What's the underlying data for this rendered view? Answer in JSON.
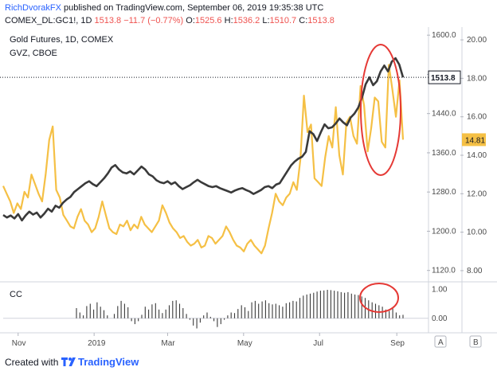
{
  "header": {
    "author": "RichDvorakFX",
    "published": "published on TradingView.com, September 06, 2019 19:35:38 UTC",
    "symbol": "COMEX_DL:GC1!, 1D",
    "last": "1513.8",
    "change": "−11.7 (−0.77%)",
    "o_label": "O:",
    "o_value": "1525.6",
    "h_label": "H:",
    "h_value": "1536.2",
    "l_label": "L:",
    "l_value": "1510.7",
    "c_label": "C:",
    "c_value": "1513.8"
  },
  "legend": {
    "gold": "Gold Futures, 1D, COMEX",
    "gvz": "GVZ, CBOE",
    "cc": "CC"
  },
  "colors": {
    "gold_line": "#3a3a3a",
    "gvz_line": "#f5c045",
    "annotation": "#e53935",
    "grid": "#e6e9ef",
    "axis_text": "#4a4a4a"
  },
  "axes": {
    "gold_ticks": [
      "1600.0",
      "1520.0",
      "1440.0",
      "1360.0",
      "1280.0",
      "1200.0",
      "1120.0"
    ],
    "gvz_ticks": [
      "20.00",
      "18.00",
      "16.00",
      "14.00",
      "12.00",
      "10.00",
      "8.00"
    ],
    "cc_ticks": [
      "1.00",
      "0.00"
    ],
    "x_ticks": [
      "Nov",
      "2019",
      "Mar",
      "May",
      "Jul",
      "Sep"
    ],
    "gold_last_badge": "1513.8",
    "gvz_last_badge": "14.81",
    "badge_a": "A",
    "badge_b": "B"
  },
  "footer": {
    "created_with": "Created with",
    "brand": "TradingView"
  },
  "chart_data": {
    "type": "line",
    "x_range": [
      "2018-10-20",
      "2019-09-06"
    ],
    "series": [
      {
        "name": "Gold Futures, 1D, COMEX",
        "axis": "left",
        "ylim": [
          1100,
          1610
        ],
        "values": [
          1233,
          1228,
          1232,
          1226,
          1235,
          1222,
          1232,
          1240,
          1234,
          1238,
          1228,
          1236,
          1246,
          1240,
          1252,
          1248,
          1258,
          1265,
          1270,
          1280,
          1286,
          1292,
          1298,
          1302,
          1296,
          1292,
          1300,
          1308,
          1318,
          1330,
          1335,
          1326,
          1320,
          1318,
          1322,
          1316,
          1324,
          1332,
          1326,
          1316,
          1312,
          1304,
          1300,
          1298,
          1302,
          1296,
          1300,
          1292,
          1286,
          1290,
          1294,
          1300,
          1305,
          1300,
          1296,
          1292,
          1290,
          1292,
          1288,
          1285,
          1282,
          1279,
          1283,
          1286,
          1288,
          1284,
          1281,
          1276,
          1280,
          1284,
          1290,
          1292,
          1288,
          1295,
          1298,
          1310,
          1322,
          1334,
          1342,
          1348,
          1352,
          1362,
          1404,
          1398,
          1384,
          1402,
          1418,
          1410,
          1412,
          1420,
          1430,
          1422,
          1416,
          1432,
          1440,
          1452,
          1472,
          1500,
          1514,
          1498,
          1506,
          1526,
          1538,
          1526,
          1546,
          1553,
          1540,
          1514
        ]
      },
      {
        "name": "GVZ, CBOE",
        "axis": "right",
        "ylim": [
          7.5,
          20.5
        ],
        "values": [
          12.4,
          12.0,
          11.6,
          11.0,
          11.5,
          11.2,
          12.1,
          11.8,
          13.0,
          12.5,
          12.0,
          11.6,
          13.0,
          14.8,
          15.5,
          12.2,
          11.8,
          10.9,
          10.6,
          10.3,
          10.2,
          10.8,
          11.2,
          10.6,
          10.4,
          10.0,
          10.2,
          10.8,
          11.6,
          10.9,
          10.2,
          10.0,
          9.9,
          10.4,
          10.3,
          10.6,
          10.1,
          10.4,
          10.2,
          10.8,
          10.4,
          10.2,
          10.0,
          10.3,
          10.6,
          11.4,
          11.0,
          10.5,
          10.2,
          10.0,
          9.7,
          9.8,
          9.5,
          9.3,
          9.4,
          9.6,
          9.2,
          9.3,
          9.8,
          9.7,
          9.4,
          9.6,
          9.8,
          10.3,
          10.0,
          9.6,
          9.3,
          9.2,
          9.0,
          9.4,
          9.6,
          9.3,
          9.1,
          8.9,
          9.3,
          10.2,
          11.0,
          12.0,
          11.6,
          11.4,
          11.8,
          12.0,
          12.6,
          12.2,
          13.8,
          17.1,
          15.2,
          15.6,
          12.8,
          12.6,
          12.4,
          13.9,
          15.0,
          14.4,
          16.5,
          14.0,
          13.0,
          15.7,
          16.0,
          15.0,
          14.6,
          17.6,
          16.6,
          14.2,
          15.4,
          17.0,
          16.8,
          14.7,
          14.4,
          18.7,
          17.4,
          16.0,
          17.9,
          14.81
        ]
      },
      {
        "name": "CC",
        "axis": "cc",
        "ylim": [
          -0.5,
          1.2
        ],
        "values": [
          0.35,
          0.2,
          0.1,
          0.42,
          0.5,
          0.3,
          0.55,
          0.4,
          0.28,
          0.1,
          0.0,
          0.15,
          0.42,
          0.6,
          0.5,
          0.38,
          -0.1,
          -0.2,
          -0.1,
          0.12,
          0.4,
          0.3,
          0.48,
          0.52,
          0.3,
          0.18,
          0.3,
          0.45,
          0.6,
          0.62,
          0.5,
          0.35,
          0.15,
          -0.05,
          -0.25,
          -0.35,
          -0.15,
          0.1,
          0.2,
          0.05,
          -0.1,
          -0.3,
          -0.2,
          -0.05,
          0.1,
          0.2,
          0.18,
          0.32,
          0.45,
          0.38,
          0.25,
          0.55,
          0.6,
          0.5,
          0.58,
          0.62,
          0.52,
          0.48,
          0.5,
          0.45,
          0.4,
          0.52,
          0.55,
          0.6,
          0.58,
          0.7,
          0.78,
          0.82,
          0.85,
          0.88,
          0.92,
          0.95,
          0.96,
          0.98,
          0.97,
          0.95,
          0.93,
          0.9,
          0.88,
          0.9,
          0.85,
          0.82,
          0.8,
          0.75,
          0.7,
          0.62,
          0.55,
          0.5,
          0.45,
          0.4,
          0.3,
          0.25,
          0.35,
          0.2,
          0.1,
          0.12
        ]
      }
    ]
  }
}
